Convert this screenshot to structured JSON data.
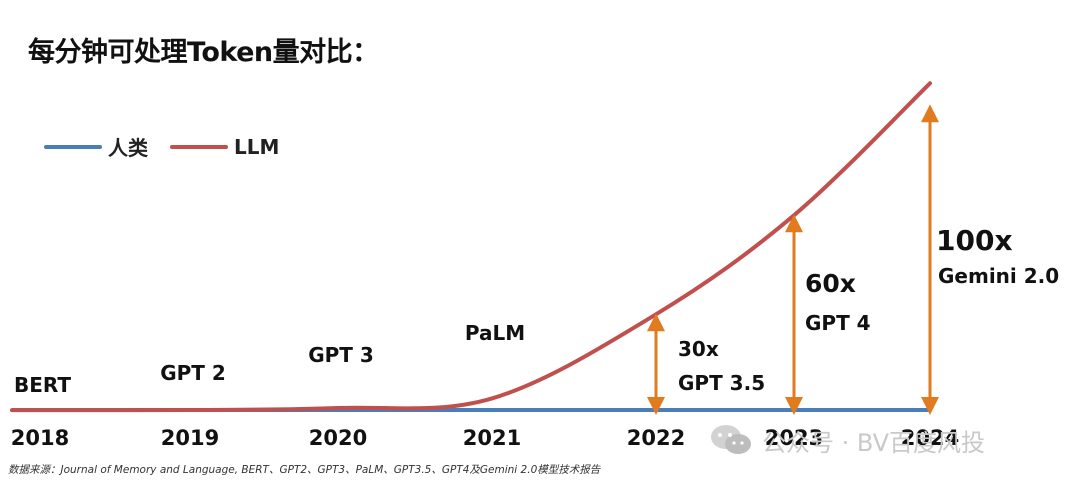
{
  "title": "每分钟可处理Token量对比：",
  "legend": [
    {
      "label": "人类",
      "color": "#4a7ebb"
    },
    {
      "label": "LLM",
      "color": "#c0504d"
    }
  ],
  "chart_data": {
    "type": "line",
    "title": "每分钟可处理Token量对比：",
    "x": [
      "2018",
      "2019",
      "2020",
      "2021",
      "2022",
      "2023",
      "2024"
    ],
    "series": [
      {
        "name": "人类",
        "color": "#4a7ebb",
        "values": [
          1,
          1,
          1,
          1,
          1,
          1,
          1
        ]
      },
      {
        "name": "LLM",
        "color": "#c0504d",
        "values": [
          0.97,
          1.0,
          1.6,
          4.5,
          30,
          60,
          100
        ]
      }
    ],
    "model_labels": [
      {
        "year": "2018",
        "text": "BERT"
      },
      {
        "year": "2019",
        "text": "GPT 2"
      },
      {
        "year": "2020",
        "text": "GPT 3"
      },
      {
        "year": "2021",
        "text": "PaLM"
      }
    ],
    "multipliers": [
      {
        "year": "2022",
        "factor": "30x",
        "model": "GPT 3.5",
        "value": 30
      },
      {
        "year": "2023",
        "factor": "60x",
        "model": "GPT 4",
        "value": 60
      },
      {
        "year": "2024",
        "factor": "100x",
        "model": "Gemini 2.0",
        "value": 100
      }
    ],
    "arrow_color": "#e07b1f",
    "grid": false
  },
  "source": "数据来源：Journal of Memory and Language, BERT、GPT2、GPT3、PaLM、GPT3.5、GPT4及Gemini 2.0模型技术报告",
  "watermark": "公众号 · BV百度风投"
}
